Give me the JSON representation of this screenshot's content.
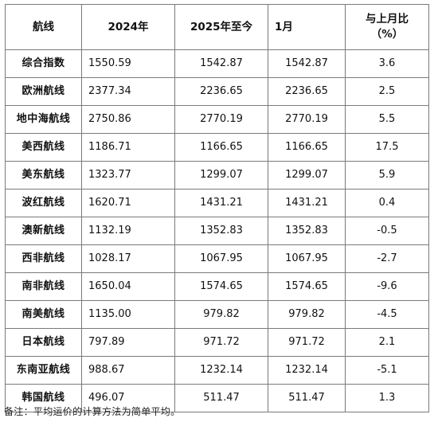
{
  "table": {
    "headers": {
      "route": "航线",
      "y2024": "2024年",
      "ytd2025": "2025年至今",
      "jan": "1月",
      "change_line1": "与上月比",
      "change_line2": "（%）"
    },
    "rows": [
      {
        "route": "综合指数",
        "y2024": "1550.59",
        "ytd2025": "1542.87",
        "jan": "1542.87",
        "change": "3.6"
      },
      {
        "route": "欧洲航线",
        "y2024": "2377.34",
        "ytd2025": "2236.65",
        "jan": "2236.65",
        "change": "2.5"
      },
      {
        "route": "地中海航线",
        "y2024": "2750.86",
        "ytd2025": "2770.19",
        "jan": "2770.19",
        "change": "5.5"
      },
      {
        "route": "美西航线",
        "y2024": "1186.71",
        "ytd2025": "1166.65",
        "jan": "1166.65",
        "change": "17.5"
      },
      {
        "route": "美东航线",
        "y2024": "1323.77",
        "ytd2025": "1299.07",
        "jan": "1299.07",
        "change": "5.9"
      },
      {
        "route": "波红航线",
        "y2024": "1620.71",
        "ytd2025": "1431.21",
        "jan": "1431.21",
        "change": "0.4"
      },
      {
        "route": "澳新航线",
        "y2024": "1132.19",
        "ytd2025": "1352.83",
        "jan": "1352.83",
        "change": "-0.5"
      },
      {
        "route": "西非航线",
        "y2024": "1028.17",
        "ytd2025": "1067.95",
        "jan": "1067.95",
        "change": "-2.7"
      },
      {
        "route": "南非航线",
        "y2024": "1650.04",
        "ytd2025": "1574.65",
        "jan": "1574.65",
        "change": "-9.6"
      },
      {
        "route": "南美航线",
        "y2024": "1135.00",
        "ytd2025": "979.82",
        "jan": "979.82",
        "change": "-4.5"
      },
      {
        "route": "日本航线",
        "y2024": "797.89",
        "ytd2025": "971.72",
        "jan": "971.72",
        "change": "2.1"
      },
      {
        "route": "东南亚航线",
        "y2024": "988.67",
        "ytd2025": "1232.14",
        "jan": "1232.14",
        "change": "-5.1"
      },
      {
        "route": "韩国航线",
        "y2024": "496.07",
        "ytd2025": "511.47",
        "jan": "511.47",
        "change": "1.3"
      }
    ]
  },
  "note": "备注：平均运价的计算方法为简单平均。"
}
